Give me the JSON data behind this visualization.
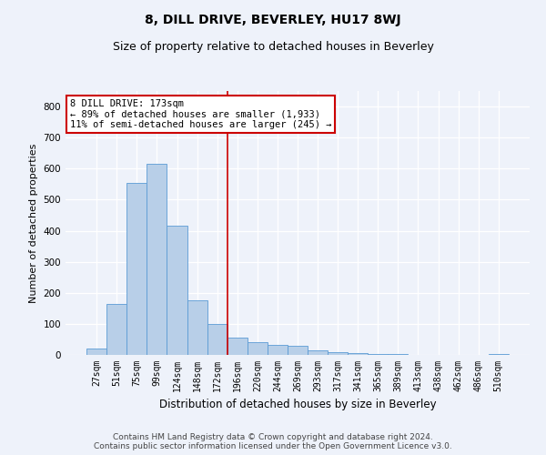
{
  "title": "8, DILL DRIVE, BEVERLEY, HU17 8WJ",
  "subtitle": "Size of property relative to detached houses in Beverley",
  "xlabel": "Distribution of detached houses by size in Beverley",
  "ylabel": "Number of detached properties",
  "footer_line1": "Contains HM Land Registry data © Crown copyright and database right 2024.",
  "footer_line2": "Contains public sector information licensed under the Open Government Licence v3.0.",
  "bar_labels": [
    "27sqm",
    "51sqm",
    "75sqm",
    "99sqm",
    "124sqm",
    "148sqm",
    "172sqm",
    "196sqm",
    "220sqm",
    "244sqm",
    "269sqm",
    "293sqm",
    "317sqm",
    "341sqm",
    "365sqm",
    "389sqm",
    "413sqm",
    "438sqm",
    "462sqm",
    "486sqm",
    "510sqm"
  ],
  "bar_values": [
    20,
    165,
    555,
    615,
    415,
    175,
    100,
    55,
    42,
    33,
    30,
    14,
    8,
    5,
    3,
    2,
    1,
    0,
    0,
    0,
    2
  ],
  "bar_color": "#b8cfe8",
  "bar_edge_color": "#5b9bd5",
  "ylim": [
    0,
    850
  ],
  "yticks": [
    0,
    100,
    200,
    300,
    400,
    500,
    600,
    700,
    800
  ],
  "vline_color": "#cc0000",
  "annotation_text": "8 DILL DRIVE: 173sqm\n← 89% of detached houses are smaller (1,933)\n11% of semi-detached houses are larger (245) →",
  "annotation_box_color": "#ffffff",
  "annotation_box_edge": "#cc0000",
  "bg_color": "#eef2fa",
  "plot_bg_color": "#eef2fa",
  "grid_color": "#ffffff",
  "title_fontsize": 10,
  "subtitle_fontsize": 9,
  "tick_fontsize": 7,
  "ylabel_fontsize": 8,
  "xlabel_fontsize": 8.5,
  "footer_fontsize": 6.5,
  "annotation_fontsize": 7.5
}
